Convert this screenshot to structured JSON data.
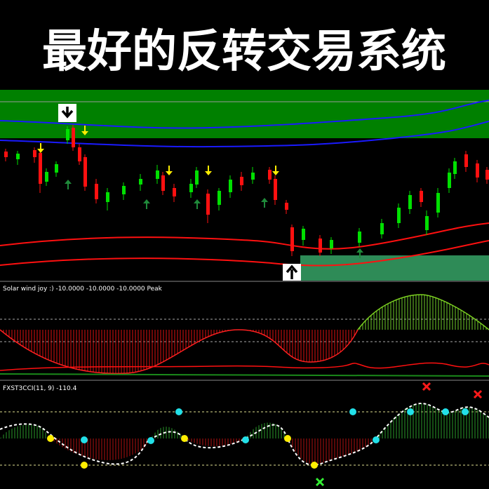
{
  "title": "最好的反转交易系统",
  "panels": [
    {
      "label": "Solar wind joy :) -10.0000 -10.0000 -10.0000  Peak"
    },
    {
      "label": "FXST3CCI(11, 9) -110.4"
    }
  ]
}
